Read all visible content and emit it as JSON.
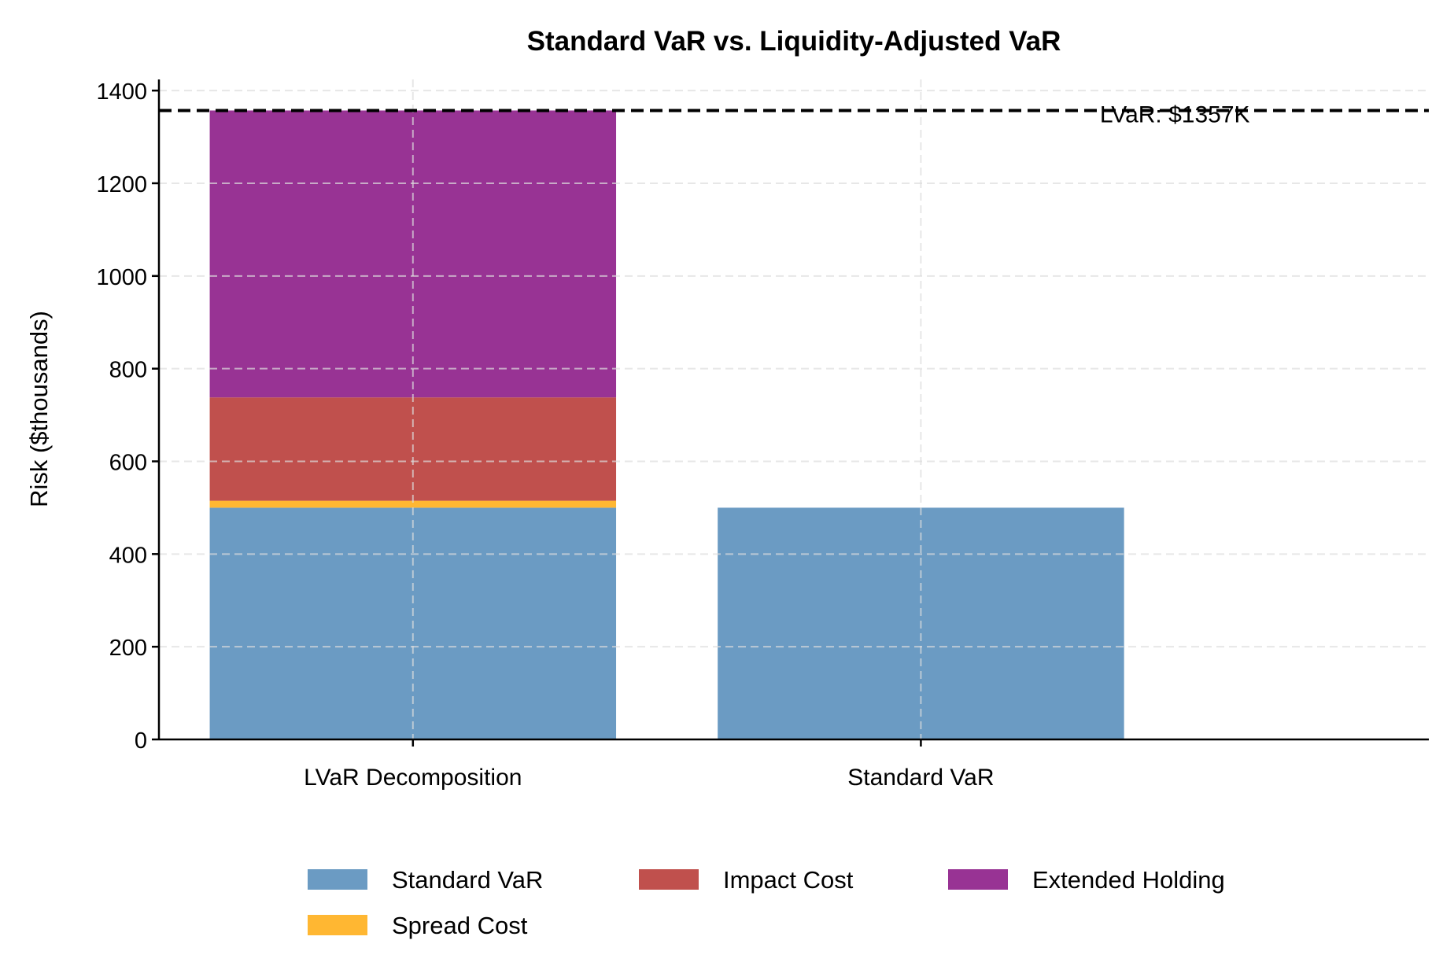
{
  "chart_data": {
    "type": "bar",
    "stacked": true,
    "title": "Standard VaR vs. Liquidity-Adjusted VaR",
    "xlabel": "",
    "ylabel": "Risk ($thousands)",
    "ylim": [
      0,
      1424
    ],
    "yticks": [
      0,
      200,
      400,
      600,
      800,
      1000,
      1200,
      1400
    ],
    "categories": [
      "LVaR Decomposition",
      "Standard VaR"
    ],
    "grid": true,
    "legend_position": "bottom",
    "series": [
      {
        "name": "Standard VaR",
        "color": "#6b9bc3",
        "values": [
          500,
          500
        ]
      },
      {
        "name": "Spread Cost",
        "color": "#ffb732",
        "values": [
          15,
          0
        ]
      },
      {
        "name": "Impact Cost",
        "color": "#c0504d",
        "values": [
          223,
          0
        ]
      },
      {
        "name": "Extended Holding",
        "color": "#983394",
        "values": [
          619,
          0
        ]
      }
    ],
    "reference_line": {
      "value": 1357,
      "label": "LVaR: $1357K",
      "style": "dashed",
      "color": "#000000"
    }
  }
}
